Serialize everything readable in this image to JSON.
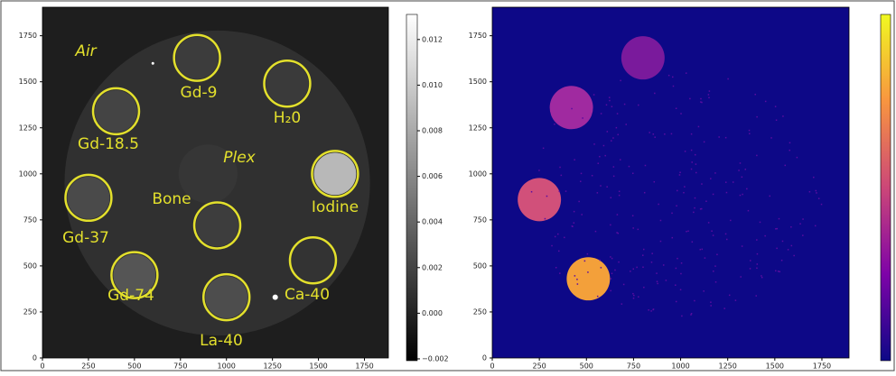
{
  "chart_data": [
    {
      "type": "image",
      "colormap": "gray",
      "xlim": [
        0,
        1880
      ],
      "ylim": [
        0,
        1905
      ],
      "xticks": [
        0,
        250,
        500,
        750,
        1000,
        1250,
        1500,
        1750
      ],
      "yticks": [
        0,
        250,
        500,
        750,
        1000,
        1250,
        1500,
        1750
      ],
      "colorbar_lim": [
        -0.00208,
        0.0131
      ],
      "colorbar_ticks": [
        {
          "value": -0.002,
          "label": "−0.002"
        },
        {
          "value": 0,
          "label": "0.000"
        },
        0.002,
        0.004,
        0.006,
        0.008,
        {
          "value": 0.01,
          "label": "0.010"
        },
        0.012
      ],
      "annotations": [
        "Air",
        "Gd-9",
        "H₂0",
        "Gd-18.5",
        "Plex",
        "Iodine",
        "Gd-37",
        "Bone",
        "Gd-74",
        "Ca-40",
        "La-40"
      ]
    },
    {
      "type": "image",
      "colormap": "plasma",
      "xlim": [
        0,
        1894
      ],
      "ylim": [
        0,
        1905
      ],
      "xticks": [
        0,
        250,
        500,
        750,
        1000,
        1250,
        1500,
        1750
      ],
      "yticks": [
        0,
        250,
        500,
        750,
        1000,
        1250,
        1500,
        1750
      ]
    }
  ]
}
